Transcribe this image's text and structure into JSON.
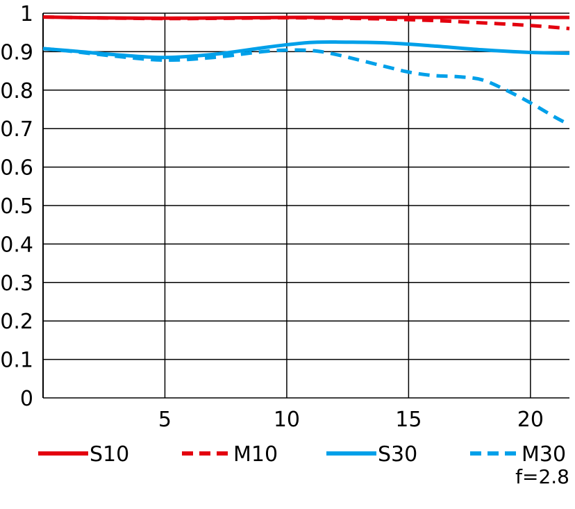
{
  "chart_data": {
    "type": "line",
    "title": "",
    "xlabel": "",
    "ylabel": "",
    "xlim": [
      0,
      21.6
    ],
    "ylim": [
      0,
      1
    ],
    "x_ticks": [
      {
        "value": 5,
        "label": "5"
      },
      {
        "value": 10,
        "label": "10"
      },
      {
        "value": 15,
        "label": "15"
      },
      {
        "value": 20,
        "label": "20"
      }
    ],
    "y_ticks": [
      {
        "value": 0,
        "label": "0"
      },
      {
        "value": 0.1,
        "label": "0.1"
      },
      {
        "value": 0.2,
        "label": "0.2"
      },
      {
        "value": 0.3,
        "label": "0.3"
      },
      {
        "value": 0.4,
        "label": "0.4"
      },
      {
        "value": 0.5,
        "label": "0.5"
      },
      {
        "value": 0.6,
        "label": "0.6"
      },
      {
        "value": 0.7,
        "label": "0.7"
      },
      {
        "value": 0.8,
        "label": "0.8"
      },
      {
        "value": 0.9,
        "label": "0.9"
      },
      {
        "value": 1,
        "label": "1"
      }
    ],
    "grid": true,
    "legend_position": "bottom",
    "annotation": "f=2.8",
    "series": [
      {
        "name": "S10",
        "color": "#e3000f",
        "style": "solid",
        "points": [
          [
            0,
            0.99
          ],
          [
            2,
            0.988
          ],
          [
            5,
            0.987
          ],
          [
            8,
            0.988
          ],
          [
            10,
            0.989
          ],
          [
            12,
            0.989
          ],
          [
            15,
            0.989
          ],
          [
            18,
            0.989
          ],
          [
            20,
            0.989
          ],
          [
            21.6,
            0.989
          ]
        ]
      },
      {
        "name": "M10",
        "color": "#e3000f",
        "style": "dashed",
        "points": [
          [
            0,
            0.99
          ],
          [
            2,
            0.988
          ],
          [
            5,
            0.986
          ],
          [
            8,
            0.987
          ],
          [
            10,
            0.988
          ],
          [
            12,
            0.987
          ],
          [
            14,
            0.985
          ],
          [
            16,
            0.981
          ],
          [
            18,
            0.975
          ],
          [
            20,
            0.968
          ],
          [
            21.6,
            0.96
          ]
        ]
      },
      {
        "name": "S30",
        "color": "#00a0e9",
        "style": "solid",
        "points": [
          [
            0,
            0.908
          ],
          [
            1,
            0.903
          ],
          [
            3,
            0.892
          ],
          [
            5,
            0.885
          ],
          [
            7,
            0.893
          ],
          [
            9,
            0.91
          ],
          [
            10,
            0.918
          ],
          [
            11,
            0.924
          ],
          [
            12,
            0.925
          ],
          [
            14,
            0.923
          ],
          [
            16,
            0.915
          ],
          [
            18,
            0.905
          ],
          [
            20,
            0.898
          ],
          [
            21.6,
            0.896
          ]
        ]
      },
      {
        "name": "M30",
        "color": "#00a0e9",
        "style": "dashed",
        "points": [
          [
            0,
            0.908
          ],
          [
            1,
            0.902
          ],
          [
            3,
            0.888
          ],
          [
            5,
            0.878
          ],
          [
            7,
            0.885
          ],
          [
            9,
            0.9
          ],
          [
            10,
            0.904
          ],
          [
            11,
            0.903
          ],
          [
            12,
            0.893
          ],
          [
            14,
            0.862
          ],
          [
            15,
            0.847
          ],
          [
            16,
            0.838
          ],
          [
            17,
            0.835
          ],
          [
            18,
            0.827
          ],
          [
            19,
            0.8
          ],
          [
            20,
            0.767
          ],
          [
            21,
            0.73
          ],
          [
            21.6,
            0.71
          ]
        ]
      }
    ]
  }
}
